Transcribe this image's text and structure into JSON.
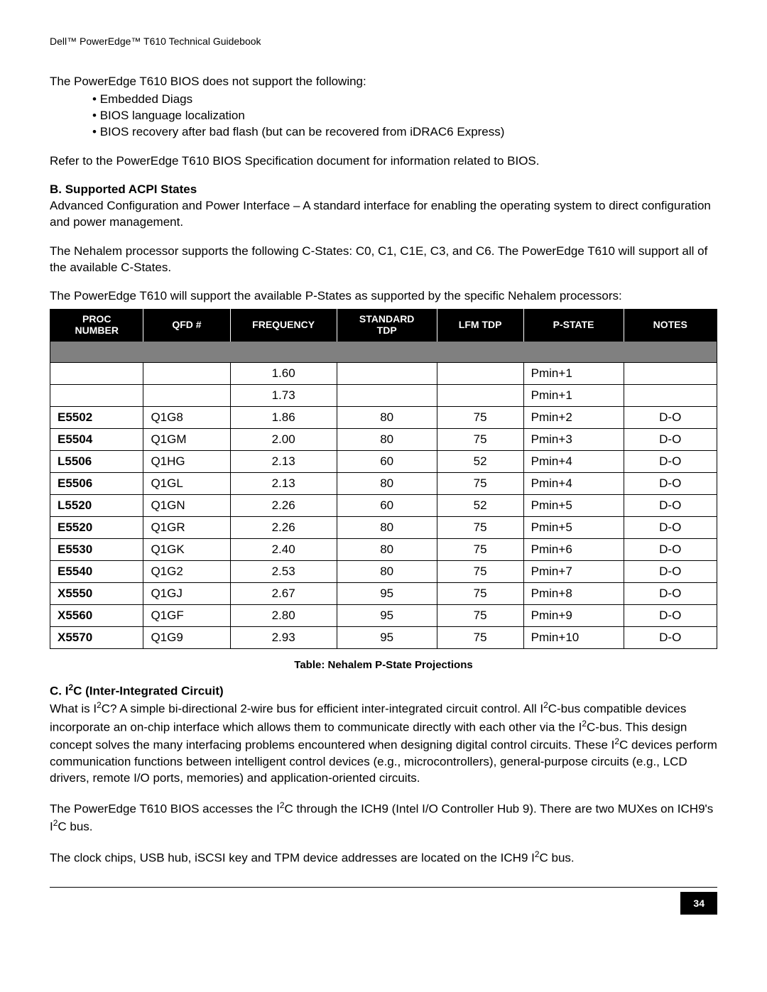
{
  "header": "Dell™ PowerEdge™ T610 Technical Guidebook",
  "intro": {
    "p1": "The PowerEdge T610 BIOS does not support the following:",
    "bullets": [
      "Embedded Diags",
      "BIOS language localization",
      "BIOS recovery after bad flash (but can be recovered from iDRAC6 Express)"
    ],
    "p2": "Refer to the PowerEdge T610 BIOS Specification document for information related to BIOS."
  },
  "sectionB": {
    "heading": "B. Supported ACPI States",
    "p1": "Advanced Configuration and Power Interface – A standard interface for enabling the operating system to direct configuration and power management.",
    "p2": "The Nehalem processor supports the following C-States: C0, C1, C1E, C3, and C6. The PowerEdge T610 will support all of the available C-States.",
    "p3": "The PowerEdge T610 will support the available P-States as supported by the specific Nehalem processors:"
  },
  "table": {
    "columns": [
      "Proc Number",
      "QFD #",
      "Frequency",
      "Standard TDP",
      "Lfm TDP",
      "P-State",
      "Notes"
    ],
    "rows": [
      [
        "",
        "",
        "1.60",
        "",
        "",
        "Pmin+1",
        ""
      ],
      [
        "",
        "",
        "1.73",
        "",
        "",
        "Pmin+1",
        ""
      ],
      [
        "E5502",
        "Q1G8",
        "1.86",
        "80",
        "75",
        "Pmin+2",
        "D-O"
      ],
      [
        "E5504",
        "Q1GM",
        "2.00",
        "80",
        "75",
        "Pmin+3",
        "D-O"
      ],
      [
        "L5506",
        "Q1HG",
        "2.13",
        "60",
        "52",
        "Pmin+4",
        "D-O"
      ],
      [
        "E5506",
        "Q1GL",
        "2.13",
        "80",
        "75",
        "Pmin+4",
        "D-O"
      ],
      [
        "L5520",
        "Q1GN",
        "2.26",
        "60",
        "52",
        "Pmin+5",
        "D-O"
      ],
      [
        "E5520",
        "Q1GR",
        "2.26",
        "80",
        "75",
        "Pmin+5",
        "D-O"
      ],
      [
        "E5530",
        "Q1GK",
        "2.40",
        "80",
        "75",
        "Pmin+6",
        "D-O"
      ],
      [
        "E5540",
        "Q1G2",
        "2.53",
        "80",
        "75",
        "Pmin+7",
        "D-O"
      ],
      [
        "X5550",
        "Q1GJ",
        "2.67",
        "95",
        "75",
        "Pmin+8",
        "D-O"
      ],
      [
        "X5560",
        "Q1GF",
        "2.80",
        "95",
        "75",
        "Pmin+9",
        "D-O"
      ],
      [
        "X5570",
        "Q1G9",
        "2.93",
        "95",
        "75",
        "Pmin+10",
        "D-O"
      ]
    ],
    "caption": "Table: Nehalem P-State Projections"
  },
  "sectionC": {
    "heading_pre": "C. I",
    "heading_post": "C (Inter-Integrated Circuit)",
    "p1_a": "What is I",
    "p1_b": "C? A simple bi-directional 2-wire bus for efficient inter-integrated circuit control. All I",
    "p1_c": "C-bus compatible devices incorporate an on-chip interface which allows them to communicate directly with each other via the I",
    "p1_d": "C-bus. This design concept solves the many interfacing problems encountered when designing digital control circuits. These I",
    "p1_e": "C devices perform communication functions between intelligent control devices (e.g., microcontrollers), general-purpose circuits (e.g., LCD drivers, remote I/O ports, memories) and application-oriented circuits.",
    "p2_a": "The PowerEdge T610 BIOS accesses the I",
    "p2_b": "C through the ICH9 (Intel I/O Controller Hub 9). There are two MUXes on ICH9's I",
    "p2_c": "C bus.",
    "p3_a": "The clock chips, USB hub, iSCSI key and TPM device addresses are located on the ICH9 I",
    "p3_b": "C bus."
  },
  "pageNumber": "34"
}
